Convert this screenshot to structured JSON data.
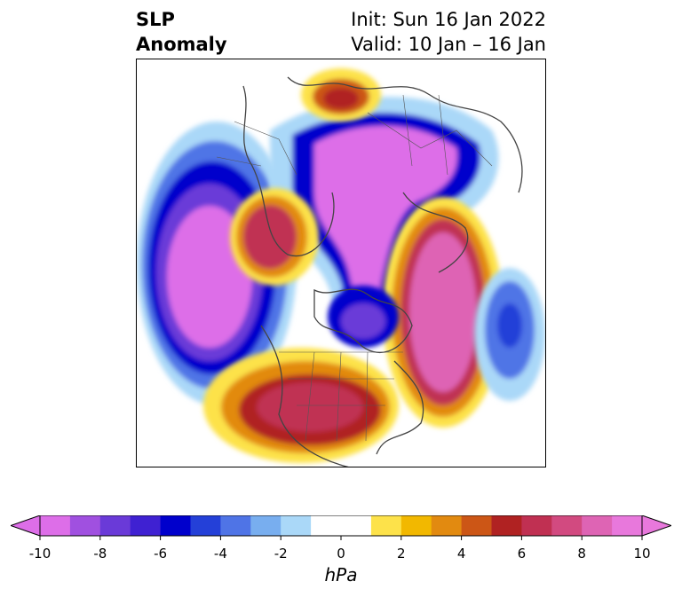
{
  "header": {
    "title_line1": "SLP",
    "title_line2": "Anomaly",
    "init_text": "Init: Sun 16 Jan 2022",
    "valid_text": "Valid: 10 Jan – 16 Jan"
  },
  "colorbar": {
    "colors": [
      "#dd6ee8",
      "#a050e0",
      "#6a3ad8",
      "#3f21d2",
      "#0000cc",
      "#2440d8",
      "#4f74e6",
      "#78aeef",
      "#aad8f8",
      "#ffffff",
      "#ffffff",
      "#fde24a",
      "#f2b800",
      "#e28a10",
      "#cc5616",
      "#b02222",
      "#c03052",
      "#d24a80",
      "#de64b4",
      "#e878dc"
    ],
    "min_color": "#dd6ee8",
    "max_color": "#e878dc",
    "ticks": [
      "-10",
      "-8",
      "-6",
      "-4",
      "-2",
      "0",
      "2",
      "4",
      "6",
      "8",
      "10"
    ],
    "unit": "hPa",
    "range": [
      -10,
      10
    ]
  }
}
